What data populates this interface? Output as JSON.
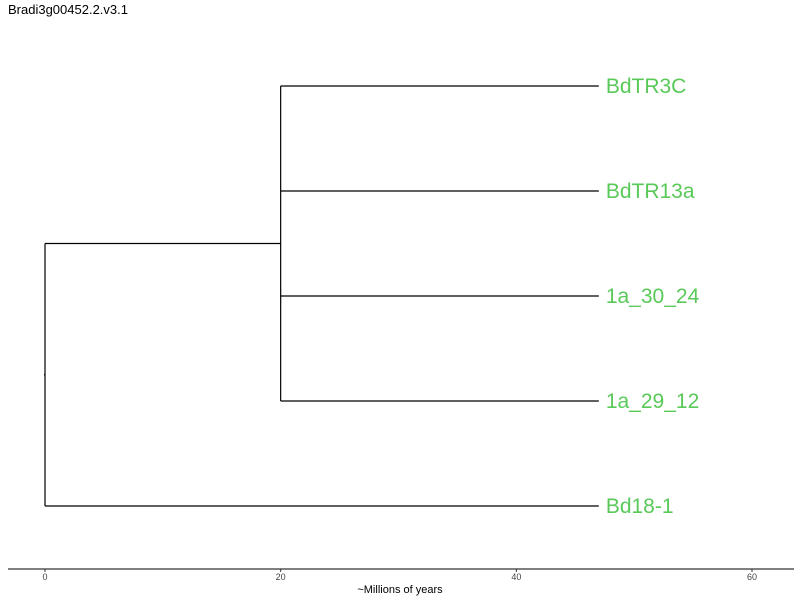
{
  "title": "Bradi3g00452.2.v3.1",
  "colors": {
    "tip_label": "#59c959",
    "branch": "#000000"
  },
  "tree": {
    "tips": [
      "BdTR3C",
      "BdTR13a",
      "1a_30_24",
      "1a_29_12",
      "Bd18-1"
    ],
    "root_time": 0,
    "inner_clade": {
      "node_time": 20,
      "members": [
        "BdTR3C",
        "BdTR13a",
        "1a_30_24",
        "1a_29_12"
      ]
    },
    "tip_time": 47
  },
  "axis": {
    "label": "~Millions of years",
    "ticks": [
      0,
      20,
      40,
      60
    ],
    "range": [
      -3,
      63.5
    ]
  }
}
